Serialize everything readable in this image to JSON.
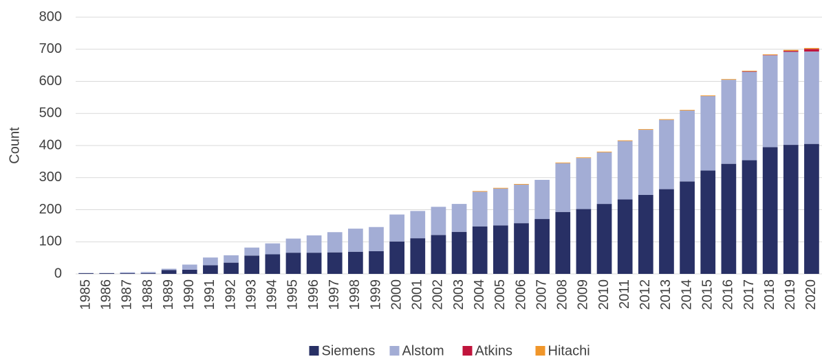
{
  "chart_data": {
    "type": "stacked_bar",
    "ylabel": "Count",
    "categories": [
      "1985",
      "1986",
      "1987",
      "1988",
      "1989",
      "1990",
      "1991",
      "1992",
      "1993",
      "1994",
      "1995",
      "1996",
      "1997",
      "1998",
      "1999",
      "2000",
      "2001",
      "2002",
      "2003",
      "2004",
      "2005",
      "2006",
      "2007",
      "2008",
      "2009",
      "2010",
      "2011",
      "2012",
      "2013",
      "2014",
      "2015",
      "2016",
      "2017",
      "2018",
      "2019",
      "2020"
    ],
    "series": [
      {
        "name": "Siemens",
        "color": "#283065",
        "values": [
          2,
          2,
          2,
          2,
          12,
          13,
          27,
          35,
          57,
          61,
          66,
          66,
          67,
          69,
          71,
          101,
          111,
          121,
          131,
          148,
          151,
          158,
          171,
          193,
          202,
          218,
          232,
          246,
          264,
          288,
          322,
          343,
          354,
          395,
          402,
          405
        ]
      },
      {
        "name": "Alstom",
        "color": "#a3add5",
        "values": [
          1,
          1,
          3,
          4,
          4,
          16,
          24,
          23,
          25,
          34,
          44,
          54,
          63,
          72,
          75,
          84,
          85,
          88,
          87,
          108,
          115,
          120,
          122,
          152,
          159,
          161,
          182,
          203,
          216,
          221,
          232,
          262,
          276,
          286,
          290,
          288
        ]
      },
      {
        "name": "Atkins",
        "color": "#c0143c",
        "values": [
          0,
          0,
          0,
          0,
          0,
          0,
          0,
          0,
          0,
          0,
          0,
          0,
          0,
          0,
          0,
          0,
          0,
          0,
          0,
          0,
          0,
          0,
          0,
          0,
          0,
          0,
          0,
          0,
          0,
          0,
          0,
          0,
          1,
          1,
          3,
          8
        ]
      },
      {
        "name": "Hitachi",
        "color": "#f0962a",
        "values": [
          0,
          0,
          0,
          0,
          0,
          0,
          0,
          0,
          0,
          0,
          0,
          0,
          0,
          0,
          0,
          0,
          0,
          0,
          0,
          2,
          2,
          2,
          0,
          2,
          2,
          2,
          2,
          2,
          2,
          2,
          2,
          2,
          2,
          2,
          3,
          3
        ]
      }
    ],
    "ylim": [
      0,
      800
    ],
    "yticks": [
      0,
      100,
      200,
      300,
      400,
      500,
      600,
      700,
      800
    ],
    "grid": true,
    "legend": "bottom"
  }
}
